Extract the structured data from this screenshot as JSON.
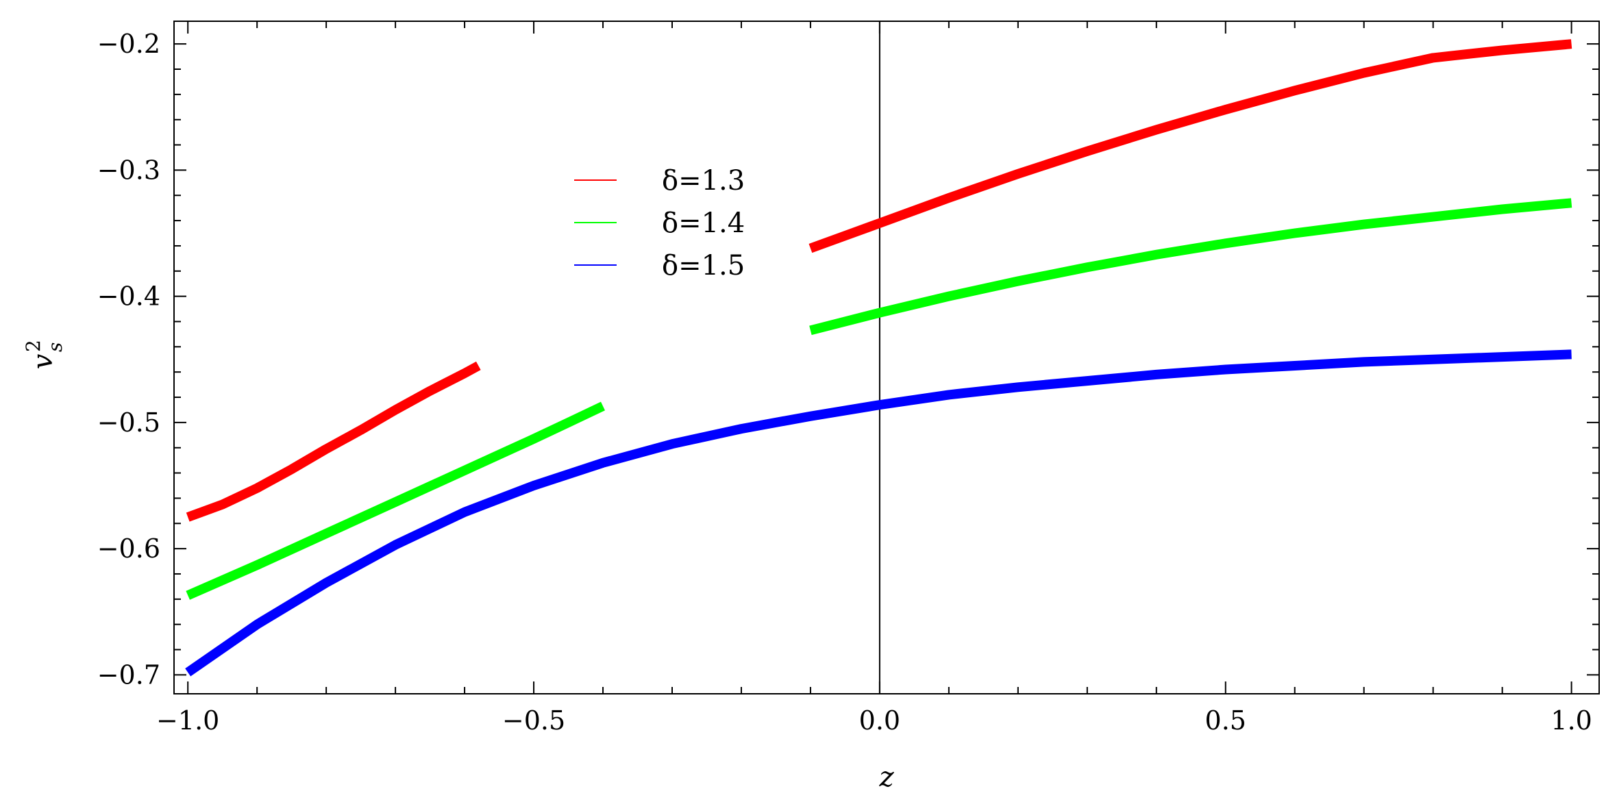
{
  "chart_data": {
    "type": "line",
    "xlabel": "z",
    "ylabel": "v",
    "ylabel_sup": "2",
    "ylabel_sub": "s",
    "xlim": [
      -1.02,
      1.04
    ],
    "ylim": [
      -0.715,
      -0.182
    ],
    "x_ticks": [
      -1.0,
      -0.5,
      0.0,
      0.5,
      1.0
    ],
    "x_tick_labels": [
      "−1.0",
      "−0.5",
      "0.0",
      "0.5",
      "1.0"
    ],
    "y_ticks": [
      -0.7,
      -0.6,
      -0.5,
      -0.4,
      -0.3,
      -0.2
    ],
    "y_tick_labels": [
      "−0.7",
      "−0.6",
      "−0.5",
      "−0.4",
      "−0.3",
      "−0.2"
    ],
    "vertical_line_x": 0.0,
    "legend_position": "upper-center",
    "series": [
      {
        "name": "δ=1.3",
        "color": "#ff0000",
        "segments": [
          [
            [
              -1.0,
              -0.575
            ],
            [
              -0.95,
              -0.565
            ],
            [
              -0.9,
              -0.552
            ],
            [
              -0.85,
              -0.537
            ],
            [
              -0.8,
              -0.521
            ],
            [
              -0.75,
              -0.506
            ],
            [
              -0.7,
              -0.49
            ],
            [
              -0.65,
              -0.475
            ],
            [
              -0.6,
              -0.461
            ],
            [
              -0.58,
              -0.455
            ]
          ],
          [
            [
              -0.1,
              -0.362
            ],
            [
              -0.05,
              -0.352
            ],
            [
              0.0,
              -0.342
            ],
            [
              0.1,
              -0.322
            ],
            [
              0.2,
              -0.303
            ],
            [
              0.3,
              -0.285
            ],
            [
              0.4,
              -0.268
            ],
            [
              0.5,
              -0.252
            ],
            [
              0.6,
              -0.237
            ],
            [
              0.7,
              -0.223
            ],
            [
              0.8,
              -0.211
            ],
            [
              0.9,
              -0.205
            ],
            [
              1.0,
              -0.2
            ]
          ]
        ]
      },
      {
        "name": "δ=1.4",
        "color": "#00ff00",
        "segments": [
          [
            [
              -1.0,
              -0.637
            ],
            [
              -0.9,
              -0.613
            ],
            [
              -0.8,
              -0.588
            ],
            [
              -0.7,
              -0.563
            ],
            [
              -0.6,
              -0.538
            ],
            [
              -0.5,
              -0.513
            ],
            [
              -0.45,
              -0.5
            ],
            [
              -0.4,
              -0.487
            ]
          ],
          [
            [
              -0.1,
              -0.427
            ],
            [
              0.0,
              -0.413
            ],
            [
              0.1,
              -0.4
            ],
            [
              0.2,
              -0.388
            ],
            [
              0.3,
              -0.377
            ],
            [
              0.4,
              -0.367
            ],
            [
              0.5,
              -0.358
            ],
            [
              0.6,
              -0.35
            ],
            [
              0.7,
              -0.343
            ],
            [
              0.8,
              -0.337
            ],
            [
              0.9,
              -0.331
            ],
            [
              1.0,
              -0.326
            ]
          ]
        ]
      },
      {
        "name": "δ=1.5",
        "color": "#0000ff",
        "segments": [
          [
            [
              -1.0,
              -0.698
            ],
            [
              -0.9,
              -0.66
            ],
            [
              -0.8,
              -0.627
            ],
            [
              -0.7,
              -0.597
            ],
            [
              -0.6,
              -0.571
            ],
            [
              -0.5,
              -0.55
            ],
            [
              -0.4,
              -0.532
            ],
            [
              -0.3,
              -0.517
            ],
            [
              -0.2,
              -0.505
            ],
            [
              -0.1,
              -0.495
            ],
            [
              0.0,
              -0.486
            ],
            [
              0.1,
              -0.478
            ],
            [
              0.2,
              -0.472
            ],
            [
              0.3,
              -0.467
            ],
            [
              0.4,
              -0.462
            ],
            [
              0.5,
              -0.458
            ],
            [
              0.6,
              -0.455
            ],
            [
              0.7,
              -0.452
            ],
            [
              0.8,
              -0.45
            ],
            [
              0.9,
              -0.448
            ],
            [
              1.0,
              -0.446
            ]
          ]
        ]
      }
    ]
  }
}
